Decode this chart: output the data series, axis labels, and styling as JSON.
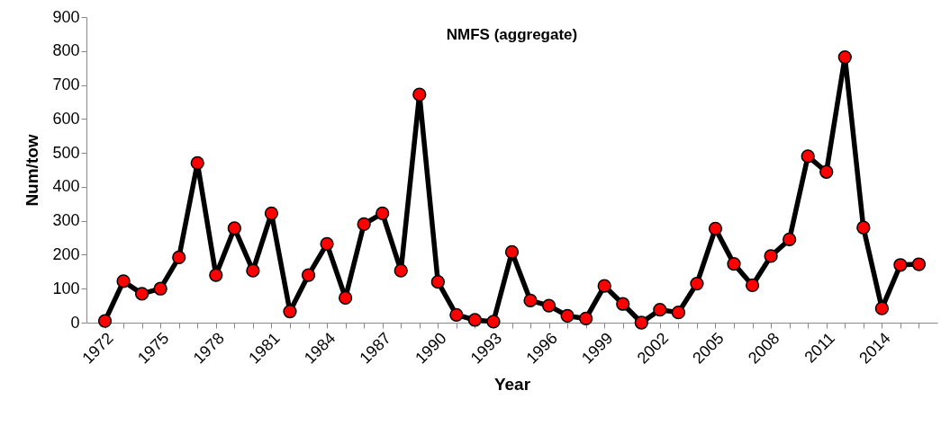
{
  "chart_data": {
    "type": "line",
    "title": "NMFS (aggregate)",
    "xlabel": "Year",
    "ylabel": "Num/tow",
    "categories": [
      "1972",
      null,
      null,
      "1975",
      null,
      null,
      "1978",
      null,
      null,
      "1981",
      null,
      null,
      "1984",
      null,
      null,
      "1987",
      null,
      null,
      "1990",
      null,
      null,
      "1993",
      null,
      null,
      "1996",
      null,
      null,
      "1999",
      null,
      null,
      "2002",
      null,
      null,
      "2005",
      null,
      null,
      "2008",
      null,
      null,
      "2011",
      null,
      null,
      "2014",
      null,
      null
    ],
    "series": [
      {
        "color": "#000000",
        "marker": "none",
        "values": [
          5,
          122,
          85,
          100,
          192,
          470,
          140,
          278,
          153,
          322,
          33,
          140,
          232,
          73,
          290,
          322,
          153,
          672,
          120,
          23,
          8,
          3,
          208,
          65,
          50,
          20,
          12,
          108,
          55,
          0,
          38,
          30,
          115,
          277,
          173,
          110,
          196,
          245,
          490,
          444,
          782,
          280,
          42,
          170,
          172
        ]
      },
      {
        "type": "scatter",
        "color": "#ff0000",
        "values": [
          5,
          122,
          85,
          100,
          192,
          470,
          140,
          278,
          153,
          322,
          33,
          140,
          232,
          73,
          290,
          322,
          153,
          672,
          120,
          23,
          8,
          3,
          208,
          65,
          50,
          20,
          12,
          108,
          55,
          0,
          38,
          30,
          115,
          277,
          173,
          110,
          196,
          245,
          490,
          444,
          782,
          280,
          42,
          170,
          172
        ]
      }
    ],
    "ylim": [
      0,
      900
    ],
    "yticks": [
      0,
      100,
      200,
      300,
      400,
      500,
      600,
      700,
      800,
      900
    ],
    "marker": "circle",
    "line_style": "solid"
  }
}
